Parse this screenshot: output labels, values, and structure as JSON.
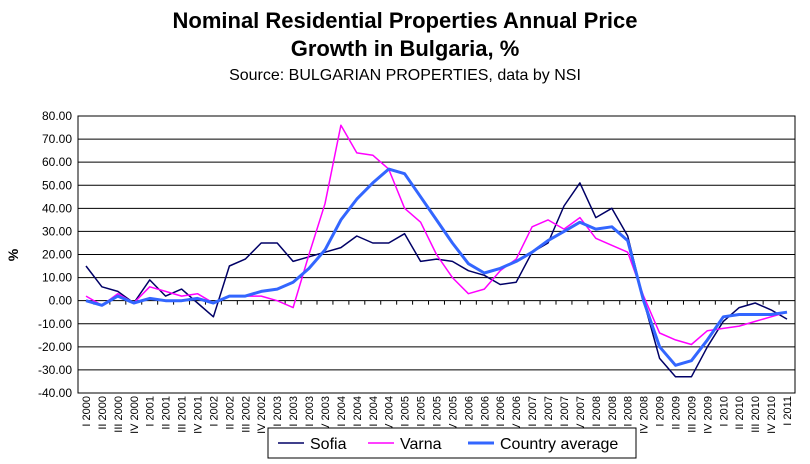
{
  "chart_data": {
    "type": "line",
    "title": "Nominal Residential Properties Annual Price",
    "title_line2": "Growth in Bulgaria, %",
    "subtitle": "Source: BULGARIAN PROPERTIES, data by NSI",
    "y_label": "%",
    "categories": [
      "I 2000",
      "II 2000",
      "III 2000",
      "IV 2000",
      "I 2001",
      "II 2001",
      "III 2001",
      "IV 2001",
      "I 2002",
      "II 2002",
      "III 2002",
      "IV 2002",
      "I 2003",
      "II 2003",
      "III 2003",
      "IV 2003",
      "I 2004",
      "II 2004",
      "III 2004",
      "IV 2004",
      "I 2005",
      "II 2005",
      "III 2005",
      "IV 2005",
      "I 2006",
      "II 2006",
      "III 2006",
      "IV 2006",
      "I 2007",
      "II 2007",
      "III 2007",
      "IV 2007",
      "I 2008",
      "II 2008",
      "III 2008",
      "IV 2008",
      "I 2009",
      "II 2009",
      "III 2009",
      "IV 2009",
      "I 2010",
      "II 2010",
      "III 2010",
      "IV 2010",
      "I 2011"
    ],
    "series": [
      {
        "name": "Sofia",
        "color": "#000066",
        "width": 1.5,
        "values": [
          15,
          6,
          4,
          -1,
          9,
          2,
          5,
          -1,
          -7,
          15,
          18,
          25,
          25,
          17,
          19,
          21,
          23,
          28,
          25,
          25,
          29,
          17,
          18,
          17,
          13,
          11,
          7,
          8,
          21,
          25,
          41,
          51,
          36,
          40,
          28,
          0,
          -25,
          -33,
          -33,
          -20,
          -9,
          -3,
          -1,
          -4,
          -8
        ]
      },
      {
        "name": "Varna",
        "color": "#ff00ff",
        "width": 1.5,
        "values": [
          2,
          -2,
          3,
          -1,
          6,
          4,
          2,
          3,
          -1,
          2,
          2,
          2,
          0,
          -3,
          20,
          42,
          76,
          64,
          63,
          57,
          40,
          34,
          20,
          10,
          3,
          5,
          13,
          18,
          32,
          35,
          31,
          36,
          27,
          24,
          21,
          2,
          -14,
          -17,
          -19,
          -13,
          -12,
          -11,
          -9,
          -7,
          -5
        ]
      },
      {
        "name": "Country average",
        "color": "#3366ff",
        "width": 3,
        "values": [
          0,
          -2,
          2,
          -1,
          1,
          0,
          0,
          1,
          -1,
          2,
          2,
          4,
          5,
          8,
          14,
          22,
          35,
          44,
          51,
          57,
          55,
          45,
          35,
          25,
          16,
          12,
          14,
          17,
          21,
          26,
          30,
          34,
          31,
          32,
          26,
          0,
          -20,
          -28,
          -26,
          -17,
          -7,
          -6,
          -6,
          -6,
          -5
        ]
      }
    ],
    "ylim": [
      -40,
      80
    ],
    "yticks": [
      {
        "value": -40,
        "label": "-40.00"
      },
      {
        "value": -30,
        "label": "-30.00"
      },
      {
        "value": -20,
        "label": "-20.00"
      },
      {
        "value": -10,
        "label": "-10.00"
      },
      {
        "value": 0,
        "label": "0.00"
      },
      {
        "value": 10,
        "label": "10.00"
      },
      {
        "value": 20,
        "label": "20.00"
      },
      {
        "value": 30,
        "label": "30.00"
      },
      {
        "value": 40,
        "label": "40.00"
      },
      {
        "value": 50,
        "label": "50.00"
      },
      {
        "value": 60,
        "label": "60.00"
      },
      {
        "value": 70,
        "label": "70.00"
      },
      {
        "value": 80,
        "label": "80.00"
      }
    ],
    "grid": true,
    "legend": "bottom"
  }
}
